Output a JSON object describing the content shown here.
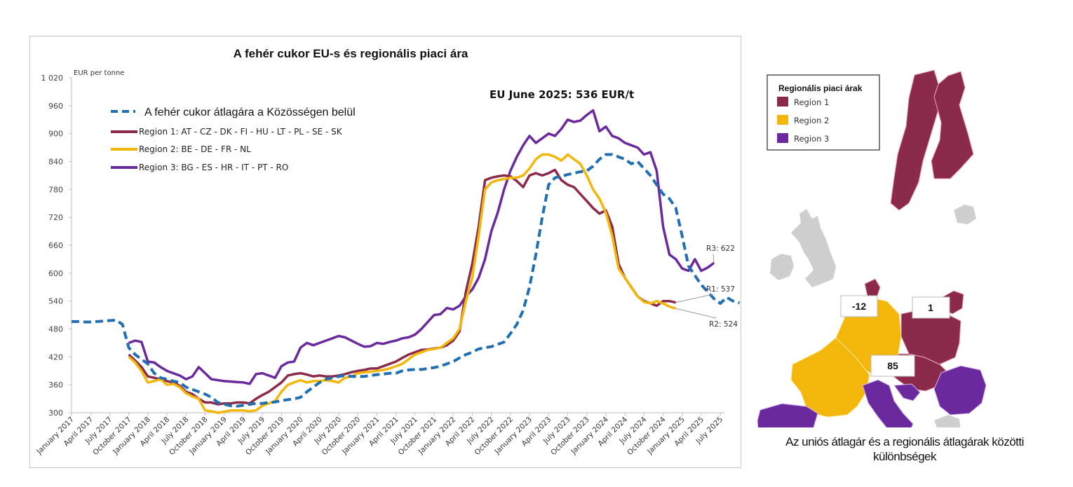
{
  "chart_data": {
    "type": "line",
    "title": "A fehér cukor EU-s és regionális piaci ára",
    "ylabel": "EUR per tonne",
    "xlabel": "",
    "ylim": [
      300,
      1020
    ],
    "yticks": [
      300,
      360,
      420,
      480,
      540,
      600,
      660,
      720,
      780,
      840,
      900,
      960,
      1020
    ],
    "ytick_labels": [
      "300",
      "360",
      "420",
      "480",
      "540",
      "600",
      "660",
      "720",
      "780",
      "840",
      "900",
      "960",
      "1 020"
    ],
    "grid": false,
    "x_start": "January 2017",
    "x_frequency": "monthly",
    "xtick_labels": [
      "January 2017",
      "April 2017",
      "July 2017",
      "October 2017",
      "January 2018",
      "April 2018",
      "July 2018",
      "October 2018",
      "January 2019",
      "April 2019",
      "July 2019",
      "October 2019",
      "January 2020",
      "April 2020",
      "July 2020",
      "October 2020",
      "January 2021",
      "April 2021",
      "July 2021",
      "October 2021",
      "January 2022",
      "April 2022",
      "July 2022",
      "October 2022",
      "January 2023",
      "April 2023",
      "July 2023",
      "October 2023",
      "January 2024",
      "April 2024",
      "July 2024",
      "October 2024",
      "January 2025",
      "April 2025",
      "July 2025"
    ],
    "annotation": "EU June 2025: 536 EUR/t",
    "legend_position": "top-left",
    "series": [
      {
        "name": "A fehér cukor átlagára a Közösségen belül",
        "color": "#1f6fb2",
        "style": "dashed",
        "start_month_index": 0,
        "values": [
          496,
          496,
          495,
          495,
          496,
          497,
          498,
          499,
          490,
          440,
          425,
          415,
          405,
          385,
          375,
          372,
          368,
          365,
          355,
          350,
          345,
          340,
          333,
          322,
          318,
          315,
          314,
          316,
          318,
          320,
          320,
          322,
          323,
          326,
          328,
          330,
          333,
          345,
          355,
          365,
          372,
          375,
          378,
          380,
          378,
          378,
          378,
          380,
          382,
          383,
          385,
          385,
          390,
          392,
          393,
          393,
          395,
          397,
          400,
          405,
          410,
          418,
          425,
          430,
          437,
          440,
          442,
          447,
          452,
          470,
          490,
          520,
          570,
          640,
          720,
          790,
          805,
          808,
          812,
          815,
          818,
          820,
          830,
          845,
          855,
          855,
          850,
          845,
          835,
          840,
          825,
          810,
          790,
          770,
          760,
          740,
          680,
          615,
          595,
          575,
          560,
          545,
          535,
          548,
          540,
          536
        ]
      },
      {
        "name": "Region 1: AT - CZ - DK - FI - HU - LT - PL - SE - SK",
        "color": "#8b2a4a",
        "style": "solid",
        "start_month_index": 9,
        "end_label": "R1: 537",
        "values": [
          425,
          412,
          398,
          378,
          375,
          372,
          368,
          365,
          358,
          345,
          340,
          330,
          322,
          322,
          318,
          320,
          320,
          322,
          322,
          320,
          330,
          338,
          345,
          355,
          365,
          380,
          383,
          385,
          382,
          378,
          380,
          378,
          378,
          380,
          383,
          387,
          390,
          392,
          395,
          395,
          400,
          405,
          410,
          418,
          425,
          430,
          435,
          436,
          438,
          440,
          445,
          455,
          475,
          560,
          620,
          700,
          800,
          805,
          808,
          810,
          808,
          798,
          785,
          810,
          815,
          810,
          815,
          822,
          800,
          790,
          785,
          770,
          755,
          740,
          728,
          735,
          700,
          620,
          590,
          570,
          550,
          540,
          535,
          530,
          540,
          540,
          537
        ]
      },
      {
        "name": "Region 2: BE - DE - FR -  NL",
        "color": "#f2b70a",
        "style": "solid",
        "start_month_index": 9,
        "end_label": "R2: 524",
        "values": [
          420,
          408,
          390,
          365,
          368,
          372,
          360,
          362,
          355,
          342,
          335,
          330,
          305,
          303,
          300,
          302,
          305,
          305,
          305,
          303,
          305,
          315,
          320,
          325,
          345,
          360,
          365,
          370,
          365,
          368,
          368,
          370,
          368,
          365,
          375,
          378,
          385,
          387,
          388,
          390,
          392,
          395,
          400,
          405,
          415,
          425,
          430,
          435,
          437,
          440,
          450,
          460,
          480,
          540,
          590,
          680,
          780,
          795,
          800,
          802,
          805,
          805,
          810,
          825,
          845,
          855,
          855,
          850,
          842,
          855,
          845,
          835,
          810,
          780,
          760,
          730,
          680,
          610,
          590,
          570,
          550,
          538,
          535,
          540,
          535,
          528,
          524
        ]
      },
      {
        "name": "Region 3: BG - ES - HR - IT - PT - RO",
        "color": "#6a2a9e",
        "style": "solid",
        "start_month_index": 9,
        "end_label": "R3: 622",
        "values": [
          450,
          455,
          452,
          410,
          408,
          398,
          390,
          385,
          380,
          372,
          378,
          398,
          385,
          372,
          370,
          368,
          367,
          366,
          365,
          362,
          383,
          385,
          380,
          375,
          400,
          408,
          410,
          440,
          450,
          445,
          450,
          455,
          460,
          465,
          462,
          455,
          448,
          442,
          443,
          450,
          448,
          452,
          455,
          460,
          462,
          468,
          480,
          495,
          510,
          512,
          525,
          522,
          530,
          550,
          565,
          590,
          630,
          690,
          730,
          780,
          820,
          850,
          875,
          895,
          880,
          890,
          900,
          895,
          910,
          930,
          925,
          928,
          940,
          950,
          905,
          915,
          895,
          890,
          880,
          875,
          870,
          855,
          860,
          820,
          700,
          640,
          630,
          610,
          605,
          630,
          605,
          612,
          622
        ]
      }
    ]
  },
  "map": {
    "legend_title": "Regionális piaci árak",
    "legend_items": [
      {
        "label": "Region 1",
        "color": "#8b2a4a"
      },
      {
        "label": "Region 2",
        "color": "#f2b70a"
      },
      {
        "label": "Region 3",
        "color": "#6a2a9e"
      }
    ],
    "other_color": "#cfcfcf",
    "differences": [
      {
        "region": "Region 2",
        "value": "-12"
      },
      {
        "region": "Region 1",
        "value": "1"
      },
      {
        "region": "Region 3",
        "value": "85"
      }
    ],
    "caption_line1": "Az uniós átlagár és a regionális átlagárak közötti",
    "caption_line2": "különbségek"
  }
}
